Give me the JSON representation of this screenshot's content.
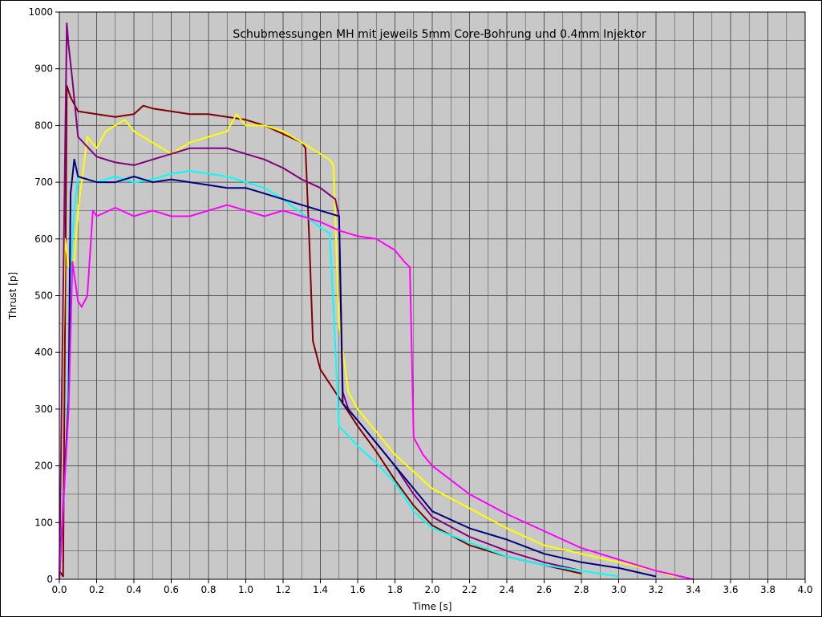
{
  "chart_data": {
    "type": "line",
    "title": "Schubmessungen MH mit jeweils 5mm Core-Bohrung und 0.4mm Injektor",
    "xlabel": "Time [s]",
    "ylabel": "Thrust [p]",
    "xlim": [
      0,
      4.0
    ],
    "ylim": [
      0,
      1000
    ],
    "x_ticks": [
      "0.0",
      "0.2",
      "0.4",
      "0.6",
      "0.8",
      "1.0",
      "1.2",
      "1.4",
      "1.6",
      "1.8",
      "2.0",
      "2.2",
      "2.4",
      "2.6",
      "2.8",
      "3.0",
      "3.2",
      "3.4",
      "3.6",
      "3.8",
      "4.0"
    ],
    "y_ticks": [
      "0",
      "100",
      "200",
      "300",
      "400",
      "500",
      "600",
      "700",
      "800",
      "900",
      "1000"
    ],
    "grid": true,
    "legend": "none",
    "plot_background": "#c8c8c8",
    "series": [
      {
        "color": "#800000",
        "x": [
          0.0,
          0.02,
          0.04,
          0.06,
          0.1,
          0.2,
          0.3,
          0.4,
          0.45,
          0.5,
          0.6,
          0.7,
          0.8,
          0.9,
          1.0,
          1.1,
          1.2,
          1.3,
          1.32,
          1.34,
          1.36,
          1.4,
          1.5,
          1.6,
          1.7,
          1.8,
          1.9,
          2.0,
          2.2,
          2.4,
          2.6,
          2.8
        ],
        "y": [
          15,
          5,
          870,
          850,
          825,
          820,
          815,
          820,
          835,
          830,
          825,
          820,
          820,
          815,
          810,
          800,
          785,
          770,
          760,
          600,
          420,
          370,
          320,
          270,
          225,
          175,
          130,
          95,
          60,
          40,
          25,
          10
        ]
      },
      {
        "color": "#ffff00",
        "x": [
          0.0,
          0.03,
          0.05,
          0.08,
          0.1,
          0.15,
          0.2,
          0.25,
          0.3,
          0.35,
          0.4,
          0.5,
          0.6,
          0.7,
          0.8,
          0.9,
          0.95,
          1.0,
          1.1,
          1.2,
          1.3,
          1.35,
          1.4,
          1.45,
          1.47,
          1.5,
          1.55,
          1.6,
          1.7,
          1.8,
          2.0,
          2.2,
          2.4,
          2.6,
          2.8,
          3.0,
          3.2,
          3.3
        ],
        "y": [
          0,
          600,
          550,
          560,
          650,
          780,
          760,
          790,
          800,
          810,
          790,
          770,
          750,
          770,
          780,
          790,
          820,
          800,
          800,
          790,
          770,
          760,
          750,
          740,
          730,
          450,
          330,
          300,
          260,
          220,
          160,
          125,
          90,
          60,
          45,
          30,
          15,
          5
        ]
      },
      {
        "color": "#800080",
        "x": [
          0.0,
          0.04,
          0.05,
          0.07,
          0.1,
          0.2,
          0.3,
          0.4,
          0.5,
          0.6,
          0.7,
          0.8,
          0.9,
          1.0,
          1.1,
          1.2,
          1.3,
          1.4,
          1.48,
          1.5,
          1.52,
          1.55,
          1.6,
          1.7,
          1.8,
          1.9,
          2.0,
          2.2,
          2.4,
          2.6,
          2.8
        ],
        "y": [
          0,
          980,
          940,
          880,
          780,
          745,
          735,
          730,
          740,
          750,
          760,
          760,
          760,
          750,
          740,
          725,
          705,
          690,
          670,
          640,
          330,
          300,
          280,
          240,
          200,
          150,
          110,
          75,
          50,
          30,
          15
        ]
      },
      {
        "color": "#00ffff",
        "x": [
          0.0,
          0.04,
          0.06,
          0.08,
          0.1,
          0.2,
          0.3,
          0.4,
          0.5,
          0.6,
          0.7,
          0.8,
          0.9,
          1.0,
          1.1,
          1.2,
          1.3,
          1.4,
          1.45,
          1.47,
          1.5,
          1.6,
          1.7,
          1.8,
          1.9,
          2.0,
          2.2,
          2.4,
          2.6,
          2.8,
          3.0
        ],
        "y": [
          0,
          250,
          550,
          650,
          710,
          700,
          710,
          700,
          705,
          715,
          720,
          715,
          710,
          700,
          690,
          670,
          645,
          620,
          610,
          480,
          270,
          235,
          205,
          170,
          120,
          90,
          65,
          40,
          25,
          15,
          5
        ]
      },
      {
        "color": "#000080",
        "x": [
          0.0,
          0.05,
          0.06,
          0.08,
          0.1,
          0.2,
          0.3,
          0.4,
          0.5,
          0.6,
          0.7,
          0.8,
          0.9,
          1.0,
          1.1,
          1.2,
          1.3,
          1.4,
          1.5,
          1.52,
          1.6,
          1.7,
          1.8,
          1.9,
          2.0,
          2.2,
          2.4,
          2.6,
          2.8,
          3.0,
          3.2
        ],
        "y": [
          0,
          320,
          680,
          740,
          710,
          700,
          700,
          710,
          700,
          705,
          700,
          695,
          690,
          690,
          680,
          670,
          660,
          650,
          640,
          310,
          280,
          240,
          200,
          160,
          120,
          90,
          70,
          45,
          30,
          20,
          5
        ]
      },
      {
        "color": "#ff00ff",
        "x": [
          0.0,
          0.05,
          0.07,
          0.1,
          0.12,
          0.15,
          0.18,
          0.2,
          0.3,
          0.4,
          0.5,
          0.6,
          0.7,
          0.8,
          0.9,
          1.0,
          1.1,
          1.2,
          1.3,
          1.4,
          1.5,
          1.6,
          1.7,
          1.8,
          1.85,
          1.88,
          1.9,
          1.95,
          2.0,
          2.2,
          2.4,
          2.6,
          2.8,
          3.0,
          3.2,
          3.4
        ],
        "y": [
          0,
          300,
          560,
          490,
          480,
          500,
          650,
          640,
          655,
          640,
          650,
          640,
          640,
          650,
          660,
          650,
          640,
          650,
          640,
          630,
          615,
          605,
          600,
          580,
          560,
          550,
          250,
          220,
          200,
          150,
          115,
          85,
          55,
          35,
          15,
          0
        ]
      }
    ]
  }
}
